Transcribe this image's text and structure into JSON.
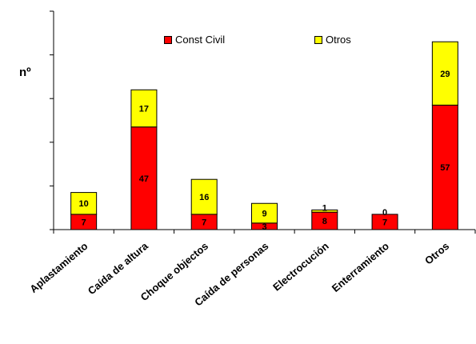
{
  "chart_data": {
    "type": "bar",
    "stacked": true,
    "title": "",
    "xlabel": "",
    "ylabel": "nº",
    "ylim": [
      0,
      100
    ],
    "grid": false,
    "legend_position": "top-center",
    "categories": [
      "Aplastamiento",
      "Caída de altura",
      "Choque objectos",
      "Caída de personas",
      "Electrocución",
      "Enterramiento",
      "Otros"
    ],
    "series": [
      {
        "name": "Const Civil",
        "color": "#ff0000",
        "values": [
          7,
          47,
          7,
          3,
          8,
          7,
          57
        ]
      },
      {
        "name": "Otros",
        "color": "#ffff00",
        "values": [
          10,
          17,
          16,
          9,
          1,
          0,
          29
        ]
      }
    ]
  }
}
